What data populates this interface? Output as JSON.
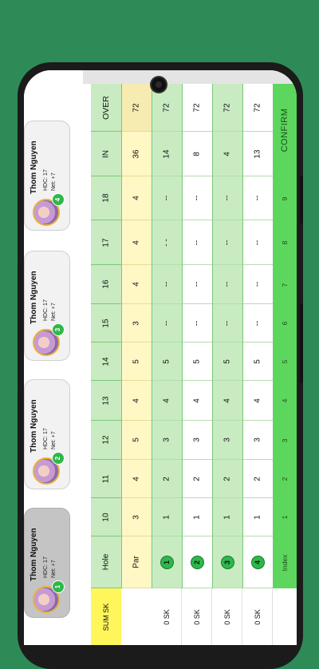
{
  "players": [
    {
      "name": "Thom Nguyen",
      "hdc": "HDC: 17",
      "net": "Net: +7",
      "rank": "1",
      "active": true
    },
    {
      "name": "Thom Nguyen",
      "hdc": "HDC: 17",
      "net": "Net: +7",
      "rank": "2",
      "active": false
    },
    {
      "name": "Thom Nguyen",
      "hdc": "HDC: 17",
      "net": "Net: +7",
      "rank": "3",
      "active": false
    },
    {
      "name": "Thom Nguyen",
      "hdc": "HDC: 17",
      "net": "Net: +7",
      "rank": "4",
      "active": false
    }
  ],
  "table": {
    "headers": [
      "Hole",
      "10",
      "11",
      "12",
      "13",
      "14",
      "15",
      "16",
      "17",
      "18",
      "IN",
      "OVER"
    ],
    "par": [
      "Par",
      "3",
      "4",
      "5",
      "4",
      "5",
      "3",
      "4",
      "4",
      "4",
      "36",
      "72"
    ],
    "score_rows": [
      [
        "1",
        "1",
        "2",
        "3",
        "4",
        "5",
        "--",
        "--",
        "- -",
        "--",
        "14",
        "72"
      ],
      [
        "2",
        "1",
        "2",
        "3",
        "4",
        "5",
        "--",
        "--",
        "--",
        "--",
        "8",
        "72"
      ],
      [
        "3",
        "1",
        "2",
        "3",
        "4",
        "5",
        "--",
        "--",
        "--",
        "--",
        "4",
        "72"
      ],
      [
        "4",
        "1",
        "2",
        "3",
        "4",
        "5",
        "--",
        "--",
        "--",
        "--",
        "13",
        "72"
      ]
    ],
    "index_row": [
      "Index",
      "1",
      "2",
      "3",
      "4",
      "5",
      "6",
      "7",
      "8",
      "9",
      "",
      ""
    ],
    "sum_header": "SUM SK",
    "sk_values": [
      "0 SK",
      "0 SK",
      "0 SK",
      "0 SK"
    ]
  },
  "confirm_label": "CONFIRM",
  "colors": {
    "background": "#2e8b57",
    "header_green": "#c8ebc2",
    "par_yellow": "#fff7c4",
    "accent_green": "#2eb84a",
    "confirm_green": "#5cd65c",
    "sum_yellow": "#fff65c"
  }
}
